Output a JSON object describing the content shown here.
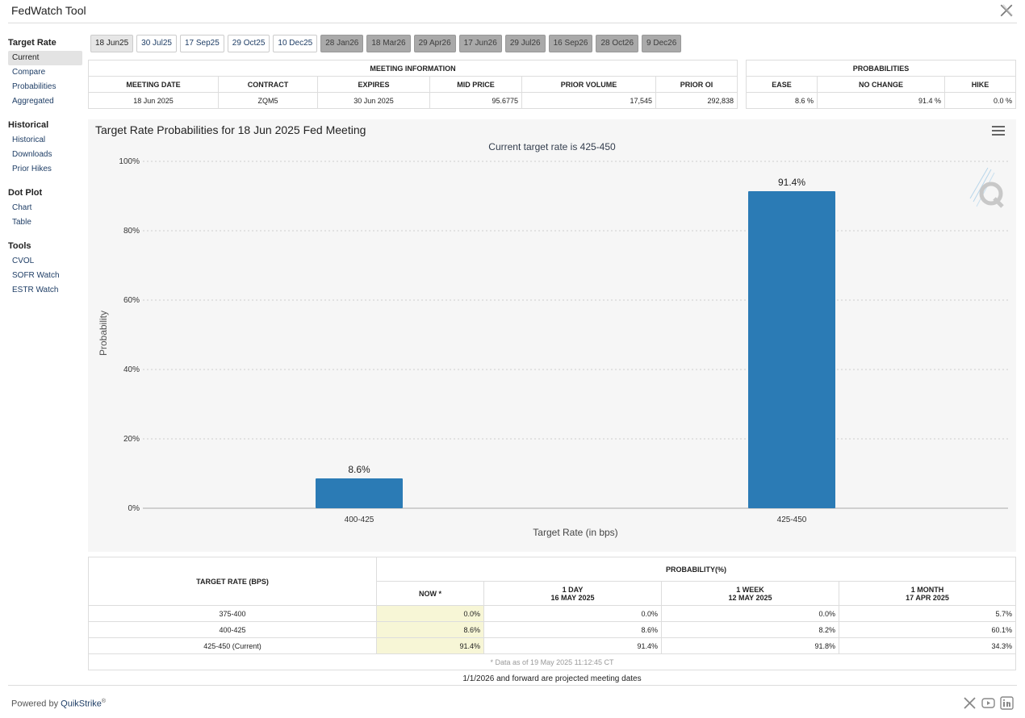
{
  "app": {
    "title": "FedWatch Tool"
  },
  "sidebar": {
    "sections": [
      {
        "title": "Target Rate",
        "items": [
          "Current",
          "Compare",
          "Probabilities",
          "Aggregated"
        ]
      },
      {
        "title": "Historical",
        "items": [
          "Historical",
          "Downloads",
          "Prior Hikes"
        ]
      },
      {
        "title": "Dot Plot",
        "items": [
          "Chart",
          "Table"
        ]
      },
      {
        "title": "Tools",
        "items": [
          "CVOL",
          "SOFR Watch",
          "ESTR Watch"
        ]
      }
    ],
    "active_item": "Current"
  },
  "tabs": [
    {
      "label": "18 Jun25",
      "state": "active"
    },
    {
      "label": "30 Jul25",
      "state": "normal"
    },
    {
      "label": "17 Sep25",
      "state": "normal"
    },
    {
      "label": "29 Oct25",
      "state": "normal"
    },
    {
      "label": "10 Dec25",
      "state": "normal"
    },
    {
      "label": "28 Jan26",
      "state": "projected"
    },
    {
      "label": "18 Mar26",
      "state": "projected"
    },
    {
      "label": "29 Apr26",
      "state": "projected"
    },
    {
      "label": "17 Jun26",
      "state": "projected"
    },
    {
      "label": "29 Jul26",
      "state": "projected"
    },
    {
      "label": "16 Sep26",
      "state": "projected"
    },
    {
      "label": "28 Oct26",
      "state": "projected"
    },
    {
      "label": "9 Dec26",
      "state": "projected"
    }
  ],
  "meeting_info": {
    "header": "MEETING INFORMATION",
    "columns": [
      "MEETING DATE",
      "CONTRACT",
      "EXPIRES",
      "MID PRICE",
      "PRIOR VOLUME",
      "PRIOR OI"
    ],
    "row": [
      "18 Jun 2025",
      "ZQM5",
      "30 Jun 2025",
      "95.6775",
      "17,545",
      "292,838"
    ]
  },
  "probabilities": {
    "header": "PROBABILITIES",
    "columns": [
      "EASE",
      "NO CHANGE",
      "HIKE"
    ],
    "row": [
      "8.6 %",
      "91.4 %",
      "0.0 %"
    ]
  },
  "chart": {
    "title": "Target Rate Probabilities for 18 Jun 2025 Fed Meeting",
    "subtitle": "Current target rate is 425-450",
    "menu_icon": "hamburger-menu-icon",
    "watermark_icon": "quikstrike-q-logo-icon"
  },
  "chart_data": {
    "type": "bar",
    "categories": [
      "400-425",
      "425-450"
    ],
    "values": [
      8.6,
      91.4
    ],
    "data_labels": [
      "8.6%",
      "91.4%"
    ],
    "title": "Target Rate Probabilities for 18 Jun 2025 Fed Meeting",
    "subtitle": "Current target rate is 425-450",
    "xlabel": "Target Rate (in bps)",
    "ylabel": "Probability",
    "ylim": [
      0,
      100
    ],
    "yticks": [
      "0%",
      "20%",
      "40%",
      "60%",
      "80%",
      "100%"
    ],
    "grid": true,
    "bar_color": "#2b7bb5"
  },
  "rate_table": {
    "header_rate": "TARGET RATE (BPS)",
    "header_prob": "PROBABILITY(%)",
    "columns": [
      {
        "line1": "NOW *",
        "line2": ""
      },
      {
        "line1": "1 DAY",
        "line2": "16 MAY 2025"
      },
      {
        "line1": "1 WEEK",
        "line2": "12 MAY 2025"
      },
      {
        "line1": "1 MONTH",
        "line2": "17 APR 2025"
      }
    ],
    "rows": [
      {
        "rate": "375-400",
        "values": [
          "0.0%",
          "0.0%",
          "0.0%",
          "5.7%"
        ]
      },
      {
        "rate": "400-425",
        "values": [
          "8.6%",
          "8.6%",
          "8.2%",
          "60.1%"
        ]
      },
      {
        "rate": "425-450 (Current)",
        "values": [
          "91.4%",
          "91.4%",
          "91.8%",
          "34.3%"
        ]
      }
    ],
    "footnote": "* Data as of 19 May 2025 11:12:45 CT",
    "now_highlight_color": "#f7f6d6"
  },
  "footer": {
    "projected_note": "1/1/2026 and forward are projected meeting dates",
    "powered_by": "Powered by ",
    "brand": "QuikStrike",
    "brand_mark": "®",
    "social_icons": [
      "x-icon",
      "youtube-icon",
      "linkedin-icon"
    ]
  }
}
